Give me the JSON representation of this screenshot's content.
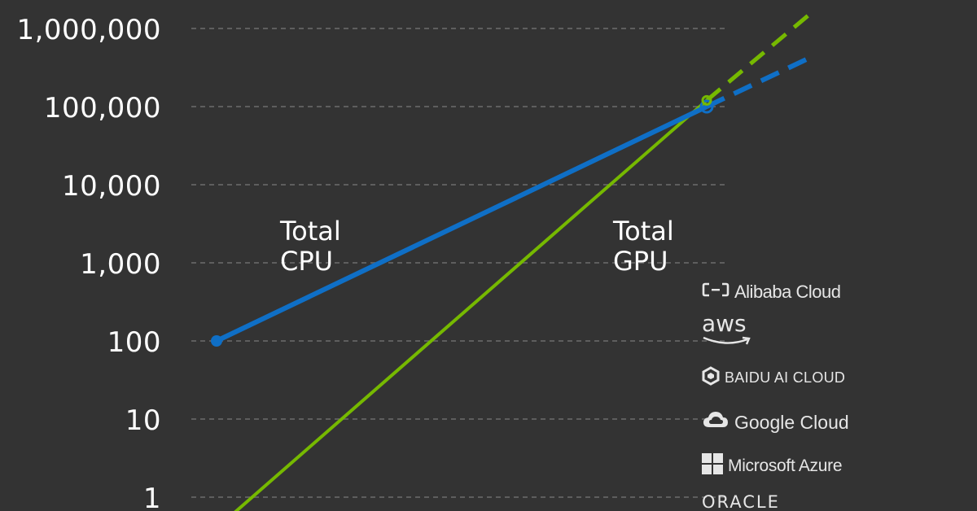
{
  "chart_data": {
    "type": "line",
    "y_scale": "log",
    "ylim": [
      1,
      1000000
    ],
    "y_ticks": [
      "1,000,000",
      "100,000",
      "10,000",
      "1,000",
      "100",
      "10",
      "1"
    ],
    "grid": "horizontal dashed",
    "series": [
      {
        "name": "Total CPU",
        "label_lines": [
          "Total",
          "CPU"
        ],
        "color": "#0f6fc6",
        "points": [
          100,
          100000
        ],
        "projection": [
          100000,
          400000
        ]
      },
      {
        "name": "Total GPU",
        "label_lines": [
          "Total",
          "GPU"
        ],
        "color": "#76b900",
        "points": [
          0.4,
          120000
        ],
        "projection": [
          120000,
          1600000
        ]
      }
    ]
  },
  "providers": [
    {
      "name": "Alibaba Cloud",
      "icon": "alibaba-cloud-icon"
    },
    {
      "name": "aws",
      "icon": "aws-smile-icon"
    },
    {
      "name": "BAIDU AI CLOUD",
      "icon": "baidu-hexagon-icon"
    },
    {
      "name": "Google Cloud",
      "icon": "google-cloud-icon"
    },
    {
      "name": "Microsoft Azure",
      "icon": "windows-grid-icon"
    },
    {
      "name": "ORACLE",
      "icon": ""
    }
  ]
}
